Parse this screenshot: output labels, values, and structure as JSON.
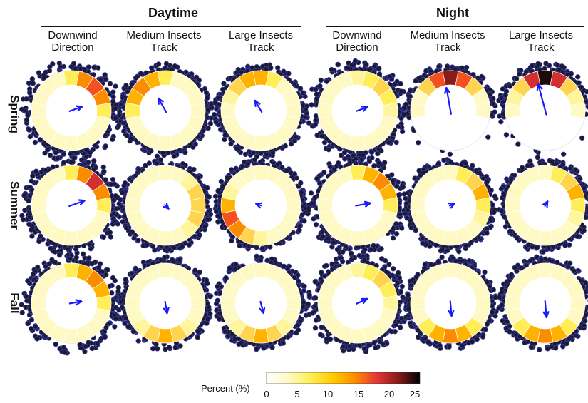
{
  "groups": {
    "daytime": "Daytime",
    "night": "Night"
  },
  "columns": [
    {
      "line1": "Downwind",
      "line2": "Direction"
    },
    {
      "line1": "Medium Insects",
      "line2": "Track"
    },
    {
      "line1": "Large Insects",
      "line2": "Track"
    },
    {
      "line1": "Downwind",
      "line2": "Direction"
    },
    {
      "line1": "Medium Insects",
      "line2": "Track"
    },
    {
      "line1": "Large Insects",
      "line2": "Track"
    }
  ],
  "rows": [
    "Spring",
    "Summer",
    "Fall"
  ],
  "colorbar": {
    "title": "Percent (%)",
    "ticks": [
      "0",
      "5",
      "10",
      "15",
      "20",
      "25"
    ],
    "stops": [
      "#ffffff",
      "#fff9c4",
      "#ffee58",
      "#ffcc00",
      "#ff8f00",
      "#e53935",
      "#8b1a1a",
      "#000000"
    ]
  },
  "colors": {
    "arrow": "#1a1aff",
    "dot_fill": "#1a1a2e",
    "dot_edge": "#3a3aa0"
  },
  "panels": [
    [
      {
        "arrow_deg": 70,
        "arrow_len": 0.45,
        "dots": "full",
        "scatter": 0.7,
        "hot_deg": 45,
        "hot_val": 18
      },
      {
        "arrow_deg": 330,
        "arrow_len": 0.55,
        "dots": "full",
        "scatter": 0.45,
        "hot_deg": 315,
        "hot_val": 15
      },
      {
        "arrow_deg": 330,
        "arrow_len": 0.45,
        "dots": "full",
        "scatter": 0.45,
        "hot_deg": 345,
        "hot_val": 13
      },
      {
        "arrow_deg": 70,
        "arrow_len": 0.4,
        "dots": "full",
        "scatter": 0.7,
        "hot_deg": 45,
        "hot_val": 10
      },
      {
        "arrow_deg": 350,
        "arrow_len": 0.9,
        "dots": "upper",
        "scatter": 0.45,
        "hot_deg": 0,
        "hot_val": 22,
        "low_mass": true
      },
      {
        "arrow_deg": 345,
        "arrow_len": 1.05,
        "dots": "upper",
        "scatter": 0.5,
        "hot_deg": 0,
        "hot_val": 25,
        "low_mass": true
      }
    ],
    [
      {
        "arrow_deg": 70,
        "arrow_len": 0.55,
        "dots": "full",
        "scatter": 0.7,
        "hot_deg": 45,
        "hot_val": 19
      },
      {
        "arrow_deg": 135,
        "arrow_len": 0.18,
        "dots": "full",
        "scatter": 0.4,
        "hot_deg": 90,
        "hot_val": 11
      },
      {
        "arrow_deg": 290,
        "arrow_len": 0.2,
        "dots": "full",
        "scatter": 0.4,
        "hot_deg": 240,
        "hot_val": 17
      },
      {
        "arrow_deg": 80,
        "arrow_len": 0.5,
        "dots": "full",
        "scatter": 0.7,
        "hot_deg": 45,
        "hot_val": 16
      },
      {
        "arrow_deg": 65,
        "arrow_len": 0.18,
        "dots": "full",
        "scatter": 0.45,
        "hot_deg": 60,
        "hot_val": 12
      },
      {
        "arrow_deg": 30,
        "arrow_len": 0.18,
        "dots": "full",
        "scatter": 0.45,
        "hot_deg": 60,
        "hot_val": 12
      }
    ],
    [
      {
        "arrow_deg": 80,
        "arrow_len": 0.4,
        "dots": "full",
        "scatter": 0.7,
        "hot_deg": 45,
        "hot_val": 16
      },
      {
        "arrow_deg": 170,
        "arrow_len": 0.4,
        "dots": "full",
        "scatter": 0.45,
        "hot_deg": 180,
        "hot_val": 13
      },
      {
        "arrow_deg": 165,
        "arrow_len": 0.4,
        "dots": "full",
        "scatter": 0.45,
        "hot_deg": 180,
        "hot_val": 12
      },
      {
        "arrow_deg": 65,
        "arrow_len": 0.4,
        "dots": "full",
        "scatter": 0.7,
        "hot_deg": 45,
        "hot_val": 10
      },
      {
        "arrow_deg": 175,
        "arrow_len": 0.5,
        "dots": "full",
        "scatter": 0.45,
        "hot_deg": 180,
        "hot_val": 15
      },
      {
        "arrow_deg": 175,
        "arrow_len": 0.55,
        "dots": "full",
        "scatter": 0.45,
        "hot_deg": 180,
        "hot_val": 16
      }
    ]
  ]
}
